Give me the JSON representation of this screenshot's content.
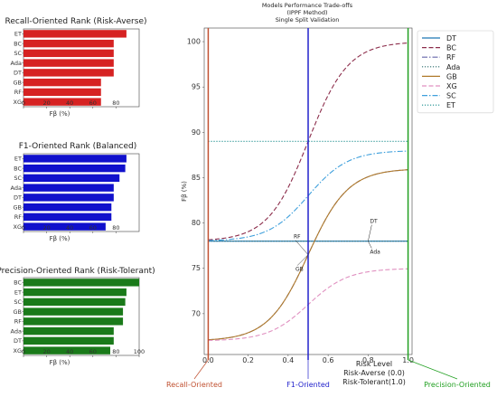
{
  "chart_data": [
    {
      "type": "bar",
      "orientation": "horizontal",
      "title": "Recall-Oriented Rank (Risk-Averse)",
      "xlabel": "Fβ (%)",
      "xticks": [
        "0",
        "20",
        "40",
        "60",
        "80"
      ],
      "xlim": [
        0,
        100
      ],
      "color": "#d62222",
      "categories": [
        "ET",
        "BC",
        "SC",
        "Ada",
        "DT",
        "GB",
        "RF",
        "XG"
      ],
      "values": [
        89,
        78,
        78,
        78,
        78,
        67,
        67,
        67
      ]
    },
    {
      "type": "bar",
      "orientation": "horizontal",
      "title": "F1-Oriented Rank (Balanced)",
      "xlabel": "Fβ (%)",
      "xticks": [
        "0",
        "20",
        "40",
        "60",
        "80"
      ],
      "xlim": [
        0,
        100
      ],
      "color": "#1111cc",
      "categories": [
        "ET",
        "BC",
        "SC",
        "Ada",
        "DT",
        "GB",
        "RF",
        "XG"
      ],
      "values": [
        89,
        88,
        83,
        78,
        78,
        76,
        76,
        71
      ]
    },
    {
      "type": "bar",
      "orientation": "horizontal",
      "title": "Precision-Oriented Rank (Risk-Tolerant)",
      "xlabel": "Fβ (%)",
      "xticks": [
        "0",
        "20",
        "40",
        "60",
        "80",
        "100"
      ],
      "xlim": [
        0,
        100
      ],
      "color": "#1a7a1a",
      "categories": [
        "BC",
        "ET",
        "SC",
        "GB",
        "RF",
        "Ada",
        "DT",
        "XG"
      ],
      "values": [
        100,
        89,
        88,
        86,
        86,
        78,
        78,
        75
      ]
    },
    {
      "type": "line",
      "title": "Models Performance Trade-offs",
      "subtitle1": "(IPPF Method)",
      "subtitle2": "Single Split Validation",
      "ylabel": "Fβ (%)",
      "xlim": [
        -0.02,
        1.02
      ],
      "ylim": [
        65.5,
        101.5
      ],
      "xticks": [
        "0.0",
        "0.2",
        "0.4",
        "0.6",
        "0.8",
        "1.0"
      ],
      "yticks": [
        "70",
        "75",
        "80",
        "85",
        "90",
        "95",
        "100"
      ],
      "legend_position": "top-right",
      "series": [
        {
          "name": "DT",
          "color": "#1f77b4",
          "dash": "",
          "start": 78,
          "end": 78,
          "mid": 0.5,
          "k": 10
        },
        {
          "name": "BC",
          "color": "#8c2d4b",
          "dash": "5,2.5",
          "start": 78,
          "end": 100,
          "mid": 0.5,
          "k": 10
        },
        {
          "name": "RF",
          "color": "#6666aa",
          "dash": "6,2,1.5,2",
          "start": 67,
          "end": 86,
          "mid": 0.5,
          "k": 10
        },
        {
          "name": "Ada",
          "color": "#2f6f6f",
          "dash": "1.2,1.8",
          "start": 78,
          "end": 78,
          "mid": 0.5,
          "k": 10
        },
        {
          "name": "GB",
          "color": "#b07a2a",
          "dash": "",
          "start": 67,
          "end": 86,
          "mid": 0.5,
          "k": 10
        },
        {
          "name": "XG",
          "color": "#e090c0",
          "dash": "5,2.5",
          "start": 67,
          "end": 75,
          "mid": 0.5,
          "k": 10
        },
        {
          "name": "SC",
          "color": "#3fa0dc",
          "dash": "6,2,1.5,2",
          "start": 78,
          "end": 88,
          "mid": 0.5,
          "k": 10
        },
        {
          "name": "ET",
          "color": "#1f8f8f",
          "dash": "1.2,1.8",
          "start": 89,
          "end": 89,
          "mid": 0.5,
          "k": 10
        }
      ],
      "reference_lines": [
        {
          "x": 0.0,
          "label": "Recall-Oriented",
          "color": "#c05030"
        },
        {
          "x": 0.5,
          "label": "F1-Oriented",
          "color": "#2222cc"
        },
        {
          "x": 1.0,
          "label": "Precision-Oriented",
          "color": "#22a022"
        }
      ],
      "annotations": [
        {
          "label": "DT",
          "x": 0.8,
          "y": 78
        },
        {
          "label": "Ada",
          "x": 0.8,
          "y": 78
        },
        {
          "label": "RF",
          "x": 0.5,
          "y": 76.5
        },
        {
          "label": "GB",
          "x": 0.5,
          "y": 76.5
        }
      ],
      "risk_text": [
        "Risk Level",
        "Risk-Averse (0.0)",
        "Risk-Tolerant(1.0)"
      ]
    }
  ]
}
